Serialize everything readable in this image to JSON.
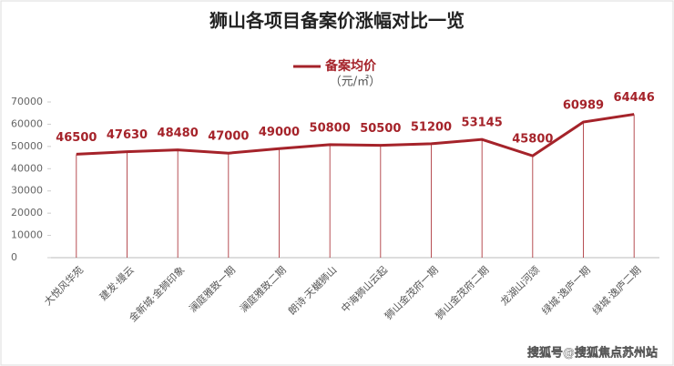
{
  "chart_data": {
    "type": "line",
    "title": "狮山各项目备案价涨幅对比一览",
    "legend_unit": "（元/㎡）",
    "watermark": "搜狐号@搜狐焦点苏州站",
    "categories": [
      "大悦风华苑",
      "建发·缦云",
      "金新城·金狮印象",
      "澜庭雅致一期",
      "澜庭雅致二期",
      "朗诗·天樾狮山",
      "中海狮山云起",
      "狮山金茂府一期",
      "狮山金茂府二期",
      "龙湖山河颂",
      "绿城·逸庐一期",
      "绿城·逸庐二期"
    ],
    "series": [
      {
        "name": "备案均价",
        "color": "#a5232a",
        "values": [
          46500,
          47630,
          48480,
          47000,
          49000,
          50800,
          50500,
          51200,
          53145,
          45800,
          60989,
          64446
        ]
      }
    ],
    "ylim": [
      0,
      70000
    ],
    "yticks": [
      0,
      10000,
      20000,
      30000,
      40000,
      50000,
      60000,
      70000
    ],
    "drop_lines": true
  }
}
